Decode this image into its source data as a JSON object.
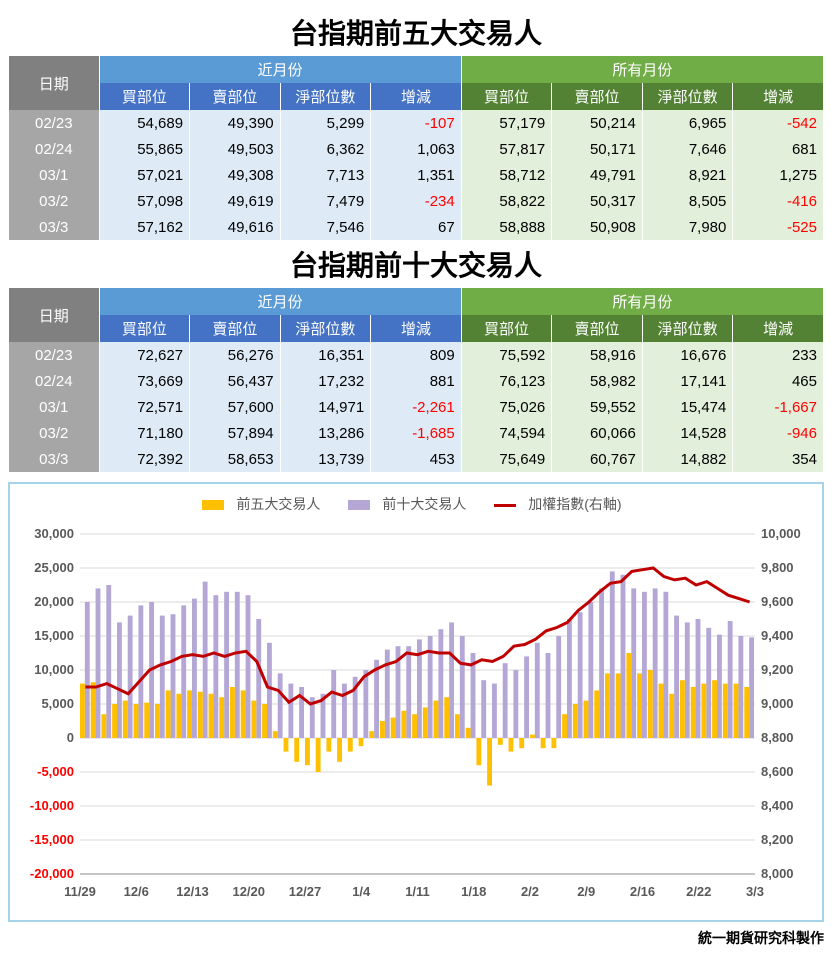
{
  "title5": "台指期前五大交易人",
  "title10": "台指期前十大交易人",
  "headers": {
    "date": "日期",
    "near": "近月份",
    "all": "所有月份",
    "buy": "買部位",
    "sell": "賣部位",
    "net": "淨部位數",
    "chg": "增減"
  },
  "table5": {
    "rows": [
      {
        "date": "02/23",
        "nb": "54,689",
        "ns": "49,390",
        "nn": "5,299",
        "nc": "-107",
        "ab": "57,179",
        "as": "50,214",
        "an": "6,965",
        "ac": "-542"
      },
      {
        "date": "02/24",
        "nb": "55,865",
        "ns": "49,503",
        "nn": "6,362",
        "nc": "1,063",
        "ab": "57,817",
        "as": "50,171",
        "an": "7,646",
        "ac": "681"
      },
      {
        "date": "03/1",
        "nb": "57,021",
        "ns": "49,308",
        "nn": "7,713",
        "nc": "1,351",
        "ab": "58,712",
        "as": "49,791",
        "an": "8,921",
        "ac": "1,275"
      },
      {
        "date": "03/2",
        "nb": "57,098",
        "ns": "49,619",
        "nn": "7,479",
        "nc": "-234",
        "ab": "58,822",
        "as": "50,317",
        "an": "8,505",
        "ac": "-416"
      },
      {
        "date": "03/3",
        "nb": "57,162",
        "ns": "49,616",
        "nn": "7,546",
        "nc": "67",
        "ab": "58,888",
        "as": "50,908",
        "an": "7,980",
        "ac": "-525"
      }
    ]
  },
  "table10": {
    "rows": [
      {
        "date": "02/23",
        "nb": "72,627",
        "ns": "56,276",
        "nn": "16,351",
        "nc": "809",
        "ab": "75,592",
        "as": "58,916",
        "an": "16,676",
        "ac": "233"
      },
      {
        "date": "02/24",
        "nb": "73,669",
        "ns": "56,437",
        "nn": "17,232",
        "nc": "881",
        "ab": "76,123",
        "as": "58,982",
        "an": "17,141",
        "ac": "465"
      },
      {
        "date": "03/1",
        "nb": "72,571",
        "ns": "57,600",
        "nn": "14,971",
        "nc": "-2,261",
        "ab": "75,026",
        "as": "59,552",
        "an": "15,474",
        "ac": "-1,667"
      },
      {
        "date": "03/2",
        "nb": "71,180",
        "ns": "57,894",
        "nn": "13,286",
        "nc": "-1,685",
        "ab": "74,594",
        "as": "60,066",
        "an": "14,528",
        "ac": "-946"
      },
      {
        "date": "03/3",
        "nb": "72,392",
        "ns": "58,653",
        "nn": "13,739",
        "nc": "453",
        "ab": "75,649",
        "as": "60,767",
        "an": "14,882",
        "ac": "354"
      }
    ]
  },
  "chart": {
    "type": "bar+line",
    "legend": {
      "s5": "前五大交易人",
      "s10": "前十大交易人",
      "idx": "加權指數(右軸)"
    },
    "colors": {
      "s5": "#ffc000",
      "s10": "#b4a7d6",
      "idx": "#c00000",
      "grid": "#d9d9d9",
      "axis_text": "#595959",
      "neg_text": "#ff0000",
      "bg": "#ffffff"
    },
    "left_axis": {
      "min": -20000,
      "max": 30000,
      "step": 5000,
      "labels": [
        "30,000",
        "25,000",
        "20,000",
        "15,000",
        "10,000",
        "5,000",
        "0",
        "-5,000",
        "-10,000",
        "-15,000",
        "-20,000"
      ]
    },
    "right_axis": {
      "min": 8000,
      "max": 10000,
      "step": 200,
      "labels": [
        "10,000",
        "9,800",
        "9,600",
        "9,400",
        "9,200",
        "9,000",
        "8,800",
        "8,600",
        "8,400",
        "8,200",
        "8,000"
      ]
    },
    "x_labels": [
      "11/29",
      "12/6",
      "12/13",
      "12/20",
      "12/27",
      "1/4",
      "1/11",
      "1/18",
      "2/2",
      "2/9",
      "2/16",
      "2/22",
      "3/3"
    ],
    "series5": [
      8000,
      8200,
      3500,
      5000,
      5500,
      5000,
      5200,
      5000,
      7000,
      6500,
      7000,
      6800,
      6500,
      6000,
      7500,
      7000,
      5500,
      5000,
      1000,
      -2000,
      -3500,
      -4000,
      -5000,
      -2000,
      -3500,
      -2000,
      -1200,
      1000,
      2500,
      3000,
      4000,
      3500,
      4500,
      5500,
      6000,
      3500,
      1500,
      -4000,
      -7000,
      -1000,
      -2000,
      -1500,
      500,
      -1500,
      -1500,
      3500,
      5000,
      5500,
      7000,
      9500,
      9500,
      12500,
      9500,
      10000,
      8000,
      6500,
      8500,
      7500,
      8000,
      8500,
      8000,
      8000,
      7500
    ],
    "series10": [
      20000,
      22000,
      22500,
      17000,
      18000,
      19500,
      20000,
      18000,
      18200,
      19500,
      20500,
      23000,
      21000,
      21500,
      21500,
      21000,
      17500,
      14000,
      9500,
      8000,
      7500,
      6000,
      6500,
      10000,
      8000,
      9000,
      10000,
      11500,
      13000,
      13500,
      13500,
      14500,
      15000,
      16000,
      17000,
      15000,
      12500,
      8500,
      8000,
      11000,
      10000,
      12000,
      14000,
      12500,
      15000,
      17500,
      18500,
      20000,
      22000,
      24500,
      24000,
      22000,
      21500,
      22000,
      21500,
      18000,
      17000,
      17500,
      16200,
      15200,
      17200,
      15000,
      14800
    ],
    "seriesIdx": [
      9100,
      9100,
      9120,
      9090,
      9060,
      9130,
      9200,
      9230,
      9250,
      9280,
      9290,
      9280,
      9300,
      9280,
      9300,
      9310,
      9250,
      9100,
      9080,
      9010,
      9050,
      9000,
      9020,
      9070,
      9050,
      9080,
      9160,
      9200,
      9230,
      9250,
      9300,
      9290,
      9310,
      9300,
      9300,
      9240,
      9230,
      9260,
      9250,
      9280,
      9340,
      9350,
      9380,
      9430,
      9450,
      9480,
      9550,
      9600,
      9660,
      9710,
      9720,
      9780,
      9790,
      9800,
      9750,
      9730,
      9740,
      9700,
      9720,
      9680,
      9640,
      9620,
      9600
    ],
    "font_size_axis": 13,
    "line_width": 3,
    "bar_group_gap": 1
  },
  "credit": "統一期貨研究科製作"
}
